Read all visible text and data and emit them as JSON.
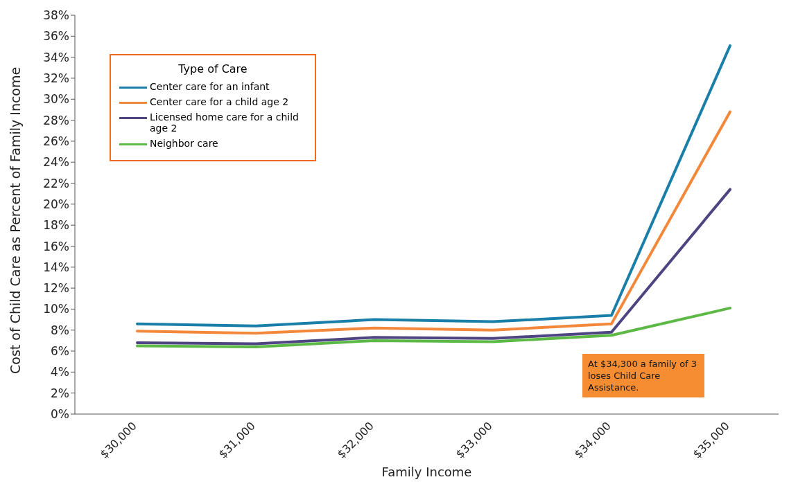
{
  "chart_data": {
    "type": "line",
    "xlabel": "Family Income",
    "ylabel": "Cost of Child Care as Percent of Family Income",
    "legend_title": "Type of Care",
    "categories": [
      "$30,000",
      "$31,000",
      "$32,000",
      "$33,000",
      "$34,000",
      "$35,000"
    ],
    "series": [
      {
        "name": "Center care for an infant",
        "color": "#1a7fa8",
        "values": [
          8.6,
          8.4,
          9.0,
          8.8,
          9.4,
          35.1
        ]
      },
      {
        "name": "Center care for a child age 2",
        "color": "#f4883a",
        "values": [
          7.9,
          7.7,
          8.2,
          8.0,
          8.6,
          28.8
        ]
      },
      {
        "name": "Licensed home care for a child age 2",
        "color": "#4d4581",
        "values": [
          6.8,
          6.7,
          7.3,
          7.2,
          7.8,
          21.4
        ]
      },
      {
        "name": "Neighbor care",
        "color": "#5cb946",
        "values": [
          6.5,
          6.4,
          7.0,
          6.9,
          7.5,
          10.1
        ]
      }
    ],
    "ylim": [
      0,
      38
    ],
    "yticks": [
      {
        "value": 0,
        "label": "0%"
      },
      {
        "value": 2,
        "label": "2%"
      },
      {
        "value": 4,
        "label": "4%"
      },
      {
        "value": 6,
        "label": "6%"
      },
      {
        "value": 8,
        "label": "8%"
      },
      {
        "value": 10,
        "label": "10%"
      },
      {
        "value": 12,
        "label": "12%"
      },
      {
        "value": 14,
        "label": "14%"
      },
      {
        "value": 16,
        "label": "16%"
      },
      {
        "value": 18,
        "label": "18%"
      },
      {
        "value": 20,
        "label": "20%"
      },
      {
        "value": 22,
        "label": "22%"
      },
      {
        "value": 24,
        "label": "24%"
      },
      {
        "value": 26,
        "label": "26%"
      },
      {
        "value": 28,
        "label": "28%"
      },
      {
        "value": 30,
        "label": "30%"
      },
      {
        "value": 32,
        "label": "32%"
      },
      {
        "value": 34,
        "label": "34%"
      },
      {
        "value": 36,
        "label": "36%"
      },
      {
        "value": 38,
        "label": "38%"
      }
    ],
    "grid": false,
    "legend": "top left",
    "marker": "none",
    "line_style": "solid",
    "annotations": [
      "At $34,300 a family of 3 loses Child Care Assistance."
    ]
  }
}
